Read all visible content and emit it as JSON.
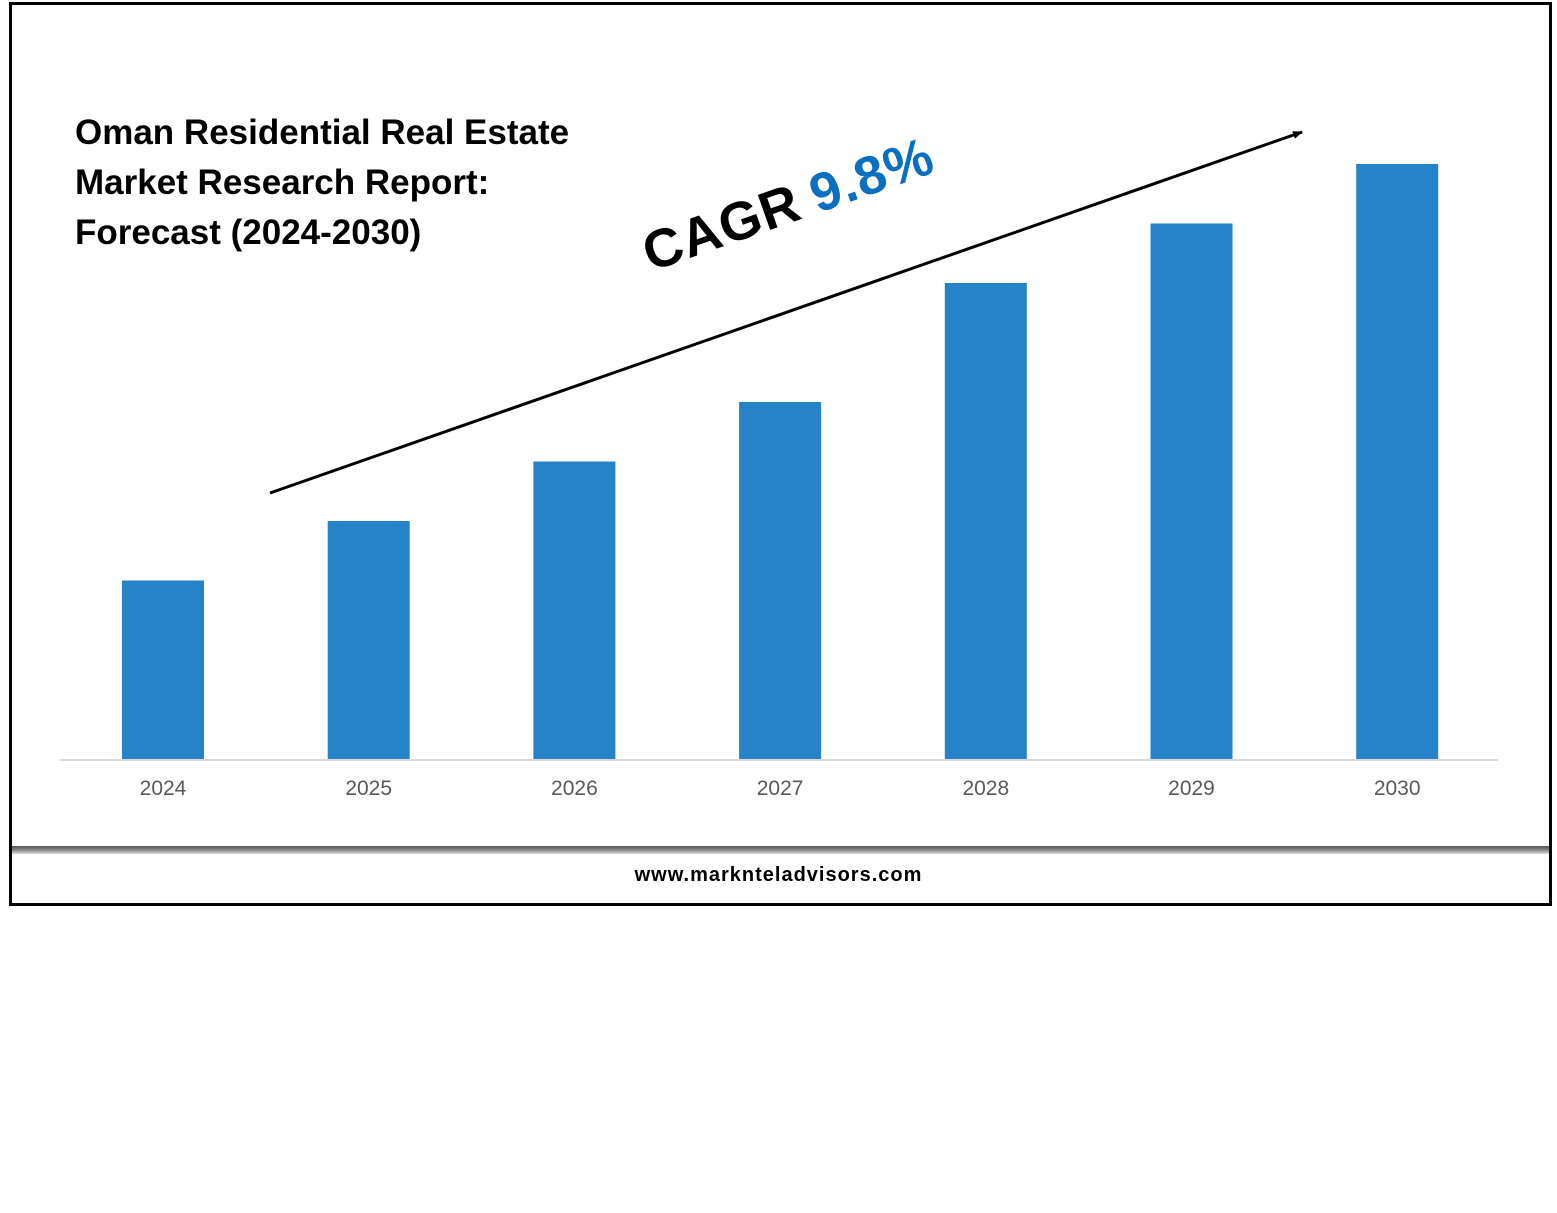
{
  "title_lines": [
    "Oman Residential Real Estate",
    "Market Research Report:",
    "Forecast (2024-2030)"
  ],
  "cagr": {
    "label": "CAGR",
    "value": "9.8%"
  },
  "footer": {
    "website": "www.marknteladvisors.com"
  },
  "colors": {
    "bar": "#2783c7",
    "cagr_value": "#0a6fc0",
    "axis": "#d9d9d9",
    "tick": "#595959"
  },
  "chart_data": {
    "type": "bar",
    "title": "Oman Residential Real Estate Market Research Report: Forecast (2024-2030)",
    "categories": [
      "2024",
      "2025",
      "2026",
      "2027",
      "2028",
      "2029",
      "2030"
    ],
    "values": [
      30,
      40,
      50,
      60,
      80,
      90,
      100
    ],
    "value_note": "relative bar heights (no value axis shown)",
    "xlabel": "",
    "ylabel": "",
    "ylim": [
      0,
      100
    ],
    "grid": false,
    "annotation": "CAGR 9.8%"
  }
}
